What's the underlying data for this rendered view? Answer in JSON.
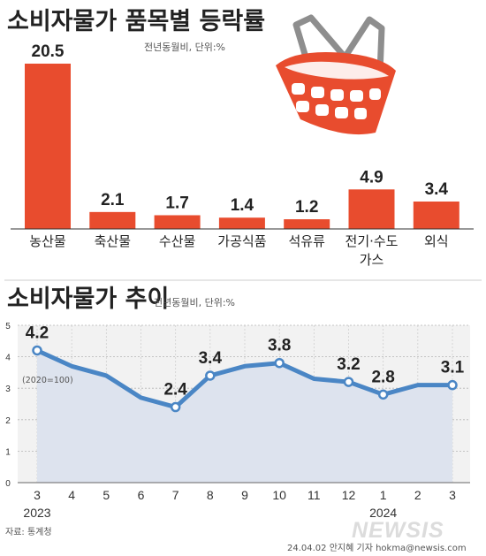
{
  "title_bar": "소비자물가 품목별 등락률",
  "unit_bar": "전년동월비, 단위:%",
  "title_line": "소비자물가 추이",
  "unit_line": "전년동월비, 단위:%",
  "index_note": "(2020=100)",
  "source": "자료: 통계청",
  "credit": "24.04.02 안지혜 기자  hokma@newsis.com",
  "watermark": "NEWSIS",
  "colors": {
    "bar": "#e84c2e",
    "line": "#4a86c5",
    "area": "#dde3ee",
    "plot_bg": "#f2f2f2"
  },
  "icon": "shopping-basket-icon",
  "chart_data": [
    {
      "type": "bar",
      "title": "소비자물가 품목별 등락률",
      "unit": "전년동월비, 단위:%",
      "categories": [
        [
          "농산물"
        ],
        [
          "축산물"
        ],
        [
          "수산물"
        ],
        [
          "가공식품"
        ],
        [
          "석유류"
        ],
        [
          "전기·수도",
          "가스"
        ],
        [
          "외식"
        ]
      ],
      "values": [
        20.5,
        2.1,
        1.7,
        1.4,
        1.2,
        4.9,
        3.4
      ],
      "value_labels": [
        "20.5",
        "2.1",
        "1.7",
        "1.4",
        "1.2",
        "4.9",
        "3.4"
      ],
      "ylim": [
        0,
        20.5
      ]
    },
    {
      "type": "line",
      "title": "소비자물가 추이",
      "unit": "전년동월비, 단위:%",
      "x": [
        "3",
        "4",
        "5",
        "6",
        "7",
        "8",
        "9",
        "10",
        "11",
        "12",
        "1",
        "2",
        "3"
      ],
      "year_labels": [
        {
          "index": 0,
          "label": "2023"
        },
        {
          "index": 10,
          "label": "2024"
        }
      ],
      "values": [
        4.2,
        3.7,
        3.4,
        2.7,
        2.4,
        3.4,
        3.7,
        3.8,
        3.3,
        3.2,
        2.8,
        3.1,
        3.1
      ],
      "labeled_points": [
        {
          "index": 0,
          "label": "4.2"
        },
        {
          "index": 4,
          "label": "2.4"
        },
        {
          "index": 5,
          "label": "3.4"
        },
        {
          "index": 7,
          "label": "3.8"
        },
        {
          "index": 9,
          "label": "3.2"
        },
        {
          "index": 10,
          "label": "2.8"
        },
        {
          "index": 12,
          "label": "3.1"
        }
      ],
      "ylim": [
        0,
        5
      ],
      "yticks": [
        "0",
        "1",
        "2",
        "3",
        "4",
        "5"
      ],
      "grid": true
    }
  ]
}
